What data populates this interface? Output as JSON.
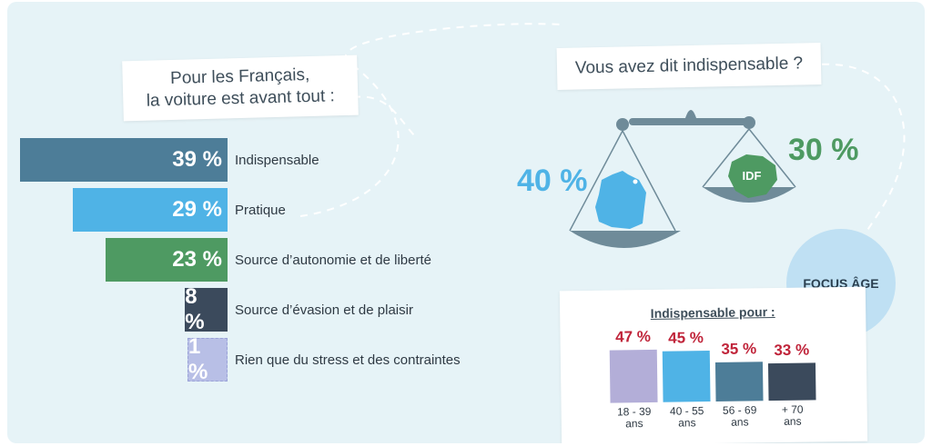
{
  "left_title": {
    "line1": "Pour les Français,",
    "line2": "la voiture est avant tout :"
  },
  "right_title": "Vous avez dit indispensable ?",
  "scale": {
    "france_value": "40 %",
    "idf_value": "30 %",
    "idf_label": "IDF"
  },
  "focus_label": "FOCUS ÂGE",
  "age_title": "Indispensable pour :",
  "colors": {
    "background": "#e6f3f7",
    "indispensable": "#4d7d98",
    "pratique": "#4fb3e6",
    "autonomie": "#4e9a62",
    "evasion": "#3b4a5c",
    "stress": "#b8bfe6",
    "france_blue": "#4fb3e6",
    "idf_green": "#4e9a62",
    "age_value_red": "#c0243a",
    "age_18_39": "#b3aed8",
    "age_40_55": "#4fb3e6",
    "age_56_69": "#4d7d98",
    "age_70": "#3b4a5c"
  },
  "chart_data": [
    {
      "type": "bar",
      "orientation": "horizontal",
      "title": "Pour les Français, la voiture est avant tout :",
      "categories": [
        "Indispensable",
        "Pratique",
        "Source d’autonomie et de liberté",
        "Source d’évasion et de plaisir",
        "Rien que du stress et des contraintes"
      ],
      "values": [
        39,
        29,
        23,
        8,
        1
      ],
      "value_labels": [
        "39 %",
        "29 %",
        "23 %",
        "8 %",
        "1 %"
      ],
      "unit": "%"
    },
    {
      "type": "bar",
      "orientation": "vertical",
      "title": "Indispensable pour :",
      "categories": [
        "18 - 39 ans",
        "40 - 55 ans",
        "56 - 69 ans",
        "+ 70 ans"
      ],
      "category_lines": [
        [
          "18 - 39",
          "ans"
        ],
        [
          "40 - 55",
          "ans"
        ],
        [
          "56 - 69",
          "ans"
        ],
        [
          "+ 70",
          "ans"
        ]
      ],
      "values": [
        47,
        45,
        35,
        33
      ],
      "value_labels": [
        "47 %",
        "45 %",
        "35 %",
        "33 %"
      ],
      "unit": "%"
    }
  ]
}
